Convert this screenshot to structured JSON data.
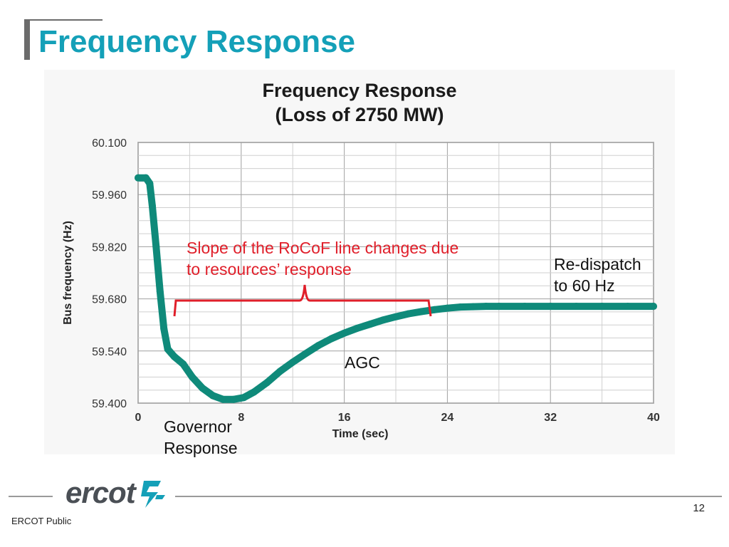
{
  "slide": {
    "title": "Frequency Response",
    "page_number": "12",
    "footer_label": "ERCOT Public",
    "logo_text": "ercot"
  },
  "annotations": {
    "rocof": "Slope of the RoCoF line changes due\nto resources’ response",
    "redispatch": "Re-dispatch\nto 60 Hz",
    "agc": "AGC",
    "governor": "Governor\nResponse"
  },
  "colors": {
    "title": "#14a0b8",
    "curve": "#0f8a7a",
    "annotation": "#e01f2a",
    "logo": "#4a4f55",
    "logo_mark": "#14a0b8"
  },
  "chart_data": {
    "type": "line",
    "title": "Frequency Response\n(Loss of 2750 MW)",
    "xlabel": "Time (sec)",
    "ylabel": "Bus frequency (Hz)",
    "xlim": [
      0,
      40
    ],
    "ylim": [
      59.4,
      60.1
    ],
    "x_ticks": [
      0,
      8,
      16,
      24,
      32,
      40
    ],
    "y_ticks": [
      "59.400",
      "59.540",
      "59.680",
      "59.820",
      "59.960",
      "60.100"
    ],
    "grid": true,
    "series": [
      {
        "x": [
          0,
          0.6,
          0.9,
          1.1,
          1.4,
          1.7,
          2.0,
          2.3,
          2.8,
          3.5,
          4.2,
          5.0,
          5.8,
          6.6,
          7.4,
          8.2,
          9.0,
          10.0,
          11.0,
          12.0,
          13.0,
          14.0,
          15.0,
          16.0,
          17.0,
          18.0,
          19.0,
          20.0,
          21.0,
          22.0,
          23.0,
          24.0,
          25.0,
          26.0,
          27.0,
          28.0,
          30.0,
          32.0,
          34.0,
          36.0,
          38.0,
          40.0
        ],
        "y": [
          60.005,
          60.005,
          59.99,
          59.93,
          59.82,
          59.7,
          59.6,
          59.545,
          59.525,
          59.505,
          59.47,
          59.44,
          59.42,
          59.41,
          59.41,
          59.415,
          59.43,
          59.455,
          59.485,
          59.51,
          59.533,
          59.555,
          59.573,
          59.588,
          59.601,
          59.612,
          59.623,
          59.632,
          59.64,
          59.646,
          59.651,
          59.655,
          59.658,
          59.659,
          59.66,
          59.66,
          59.66,
          59.66,
          59.66,
          59.66,
          59.66,
          59.66
        ]
      }
    ]
  }
}
